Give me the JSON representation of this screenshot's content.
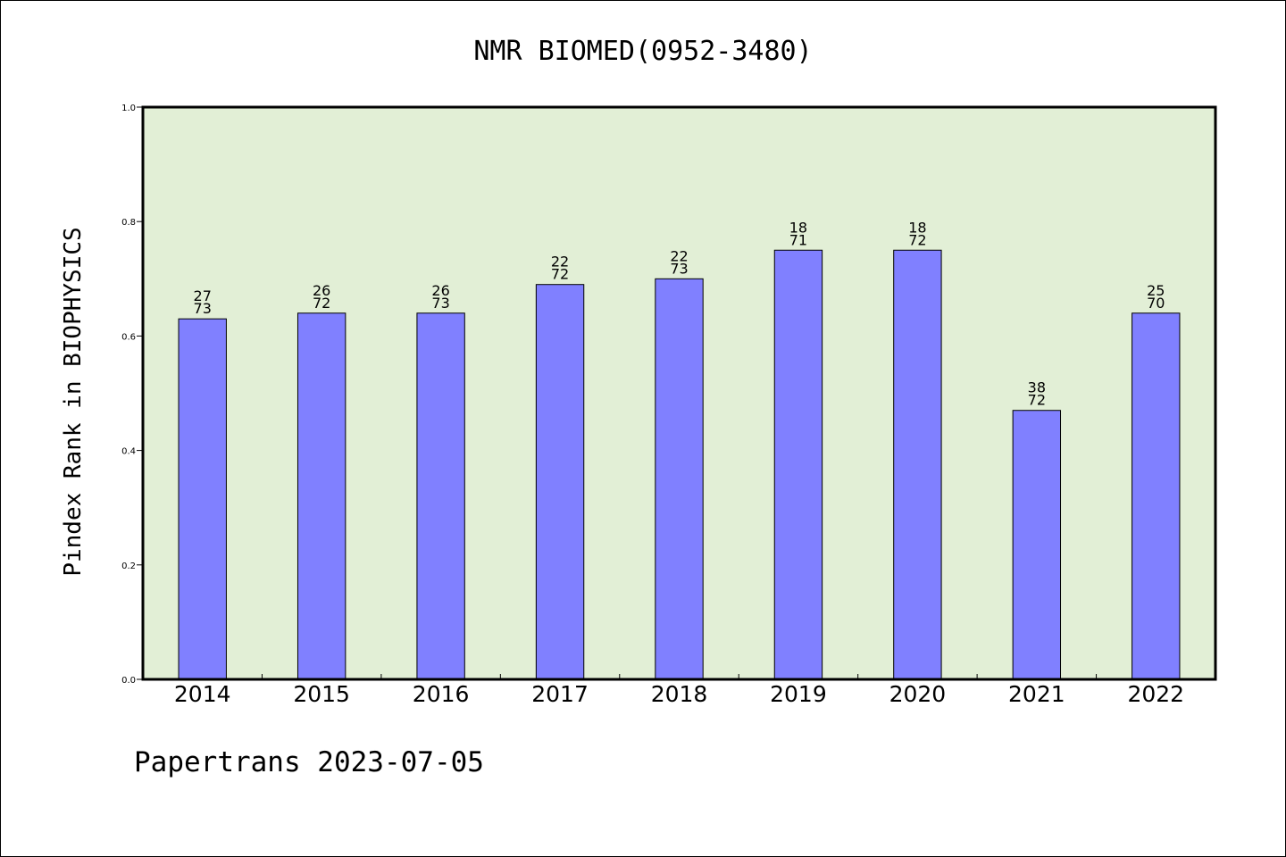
{
  "chart_data": {
    "type": "bar",
    "title": "NMR BIOMED(0952-3480)",
    "ylabel": "Pindex Rank in BIOPHYSICS",
    "xlabel": "",
    "categories": [
      "2014",
      "2015",
      "2016",
      "2017",
      "2018",
      "2019",
      "2020",
      "2021",
      "2022"
    ],
    "values": [
      0.63,
      0.64,
      0.64,
      0.69,
      0.7,
      0.75,
      0.75,
      0.47,
      0.64
    ],
    "data_labels": [
      [
        "27",
        "73"
      ],
      [
        "26",
        "72"
      ],
      [
        "26",
        "73"
      ],
      [
        "22",
        "72"
      ],
      [
        "22",
        "73"
      ],
      [
        "18",
        "71"
      ],
      [
        "18",
        "72"
      ],
      [
        "38",
        "72"
      ],
      [
        "25",
        "70"
      ]
    ],
    "ylim": [
      0,
      1.0
    ],
    "yticks": [
      "0.0",
      "0.2",
      "0.4",
      "0.6",
      "0.8",
      "1.0"
    ],
    "grid": false,
    "colors": {
      "bar": "#8080ff",
      "plot_background": "#e2efd6",
      "frame": "#000000"
    }
  },
  "footer": "Papertrans 2023-07-05"
}
